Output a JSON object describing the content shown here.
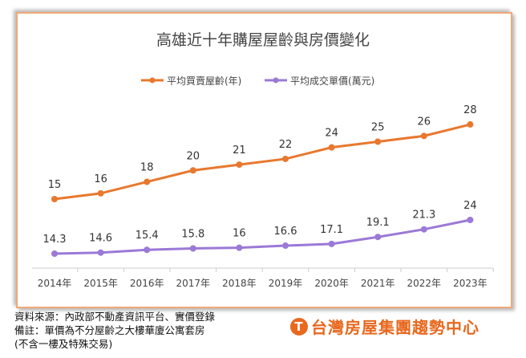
{
  "chart_data": {
    "type": "line",
    "title": "高雄近十年購屋屋齡與房價變化",
    "categories": [
      "2014年",
      "2015年",
      "2016年",
      "2017年",
      "2018年",
      "2019年",
      "2020年",
      "2021年",
      "2022年",
      "2023年"
    ],
    "series": [
      {
        "name": "平均買賣屋齡(年)",
        "color": "#e8782e",
        "values": [
          15,
          16,
          18,
          20,
          21,
          22,
          24,
          25,
          26,
          28
        ]
      },
      {
        "name": "平均成交單價(萬元)",
        "color": "#9b79d6",
        "values": [
          14.3,
          14.6,
          15.4,
          15.8,
          16,
          16.6,
          17.1,
          19.1,
          21.3,
          24
        ]
      }
    ],
    "grid": false,
    "legend": "top"
  },
  "notes": [
    "資料來源：內政部不動產資訊平台、實價登錄",
    "備註：單價為不分屋齡之大樓華廈公寓套房",
    "(不含一樓及特殊交易)"
  ],
  "logo": {
    "text": "台灣房屋集團趨勢中心",
    "color": "#e8681e"
  }
}
